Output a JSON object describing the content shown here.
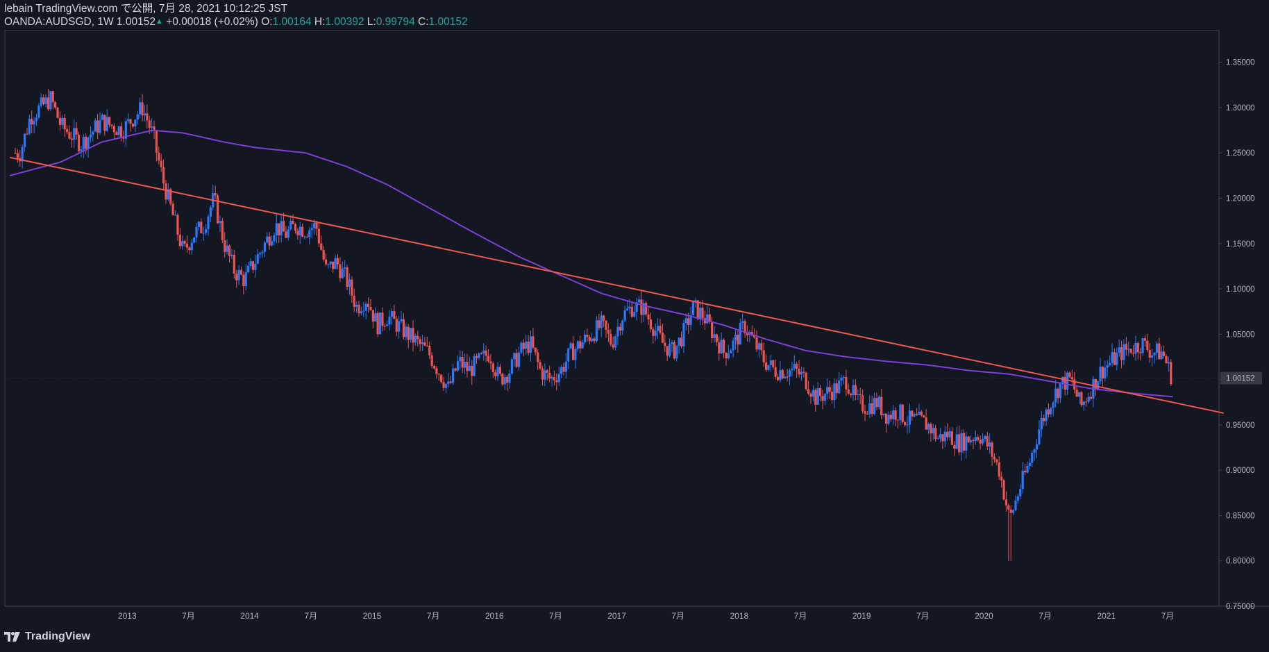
{
  "header": {
    "publisher_line": "lebain TradingView.com で公開, 7月 28, 2021 10:12:25 JST",
    "symbol": "OANDA:AUDSGD, 1W",
    "last": "1.00152",
    "change": "+0.00018 (+0.02%)",
    "o_label": "O:",
    "o_value": "1.00164",
    "h_label": "H:",
    "h_value": "1.00392",
    "l_label": "L:",
    "l_value": "0.99794",
    "c_label": "C:",
    "c_value": "1.00152"
  },
  "price_tag": "1.00152",
  "footer": {
    "brand": "TradingView"
  },
  "colors": {
    "background": "#131722",
    "up": "#2979ff",
    "down": "#ef5350",
    "ma": "#7e3fd6",
    "trendline": "#f0574f",
    "tag_bg": "#363a45"
  },
  "chart_data": {
    "type": "candlestick",
    "interval": "1W",
    "y_ticks": [
      "1.35000",
      "1.30000",
      "1.25000",
      "1.20000",
      "1.15000",
      "1.10000",
      "1.05000",
      "1.00000",
      "0.95000",
      "0.90000",
      "0.85000",
      "0.80000",
      "0.75000"
    ],
    "x_ticks": [
      "2013",
      "7月",
      "2014",
      "7月",
      "2015",
      "7月",
      "2016",
      "7月",
      "2017",
      "7月",
      "2018",
      "7月",
      "2019",
      "7月",
      "2020",
      "7月",
      "2021",
      "7月"
    ],
    "ylim": [
      0.75,
      1.385
    ],
    "close_path": [
      [
        "2012-02",
        1.25
      ],
      [
        "2012-03",
        1.29
      ],
      [
        "2012-05",
        1.31
      ],
      [
        "2012-06",
        1.28
      ],
      [
        "2012-08",
        1.26
      ],
      [
        "2012-10",
        1.285
      ],
      [
        "2012-12",
        1.275
      ],
      [
        "2013-02",
        1.3
      ],
      [
        "2013-03",
        1.27
      ],
      [
        "2013-04",
        1.22
      ],
      [
        "2013-05",
        1.18
      ],
      [
        "2013-06",
        1.14
      ],
      [
        "2013-07",
        1.16
      ],
      [
        "2013-08",
        1.17
      ],
      [
        "2013-09",
        1.2
      ],
      [
        "2013-10",
        1.15
      ],
      [
        "2013-11",
        1.12
      ],
      [
        "2013-12",
        1.11
      ],
      [
        "2014-01",
        1.13
      ],
      [
        "2014-02",
        1.15
      ],
      [
        "2014-03",
        1.17
      ],
      [
        "2014-04",
        1.16
      ],
      [
        "2014-05",
        1.17
      ],
      [
        "2014-06",
        1.165
      ],
      [
        "2014-07",
        1.17
      ],
      [
        "2014-08",
        1.12
      ],
      [
        "2014-09",
        1.13
      ],
      [
        "2014-10",
        1.11
      ],
      [
        "2014-11",
        1.08
      ],
      [
        "2014-12",
        1.09
      ],
      [
        "2015-01",
        1.06
      ],
      [
        "2015-02",
        1.07
      ],
      [
        "2015-03",
        1.06
      ],
      [
        "2015-04",
        1.05
      ],
      [
        "2015-05",
        1.04
      ],
      [
        "2015-06",
        1.03
      ],
      [
        "2015-07",
        1.01
      ],
      [
        "2015-08",
        0.99
      ],
      [
        "2015-09",
        1.02
      ],
      [
        "2015-10",
        1.01
      ],
      [
        "2015-11",
        1.02
      ],
      [
        "2015-12",
        1.03
      ],
      [
        "2016-01",
        1.0
      ],
      [
        "2016-02",
        1.01
      ],
      [
        "2016-03",
        1.03
      ],
      [
        "2016-04",
        1.04
      ],
      [
        "2016-05",
        1.01
      ],
      [
        "2016-06",
        1.0
      ],
      [
        "2016-07",
        1.01
      ],
      [
        "2016-08",
        1.03
      ],
      [
        "2016-09",
        1.04
      ],
      [
        "2016-10",
        1.05
      ],
      [
        "2016-11",
        1.06
      ],
      [
        "2016-12",
        1.04
      ],
      [
        "2017-01",
        1.07
      ],
      [
        "2017-02",
        1.08
      ],
      [
        "2017-03",
        1.08
      ],
      [
        "2017-04",
        1.06
      ],
      [
        "2017-05",
        1.04
      ],
      [
        "2017-06",
        1.03
      ],
      [
        "2017-07",
        1.05
      ],
      [
        "2017-08",
        1.08
      ],
      [
        "2017-09",
        1.07
      ],
      [
        "2017-10",
        1.05
      ],
      [
        "2017-11",
        1.03
      ],
      [
        "2017-12",
        1.04
      ],
      [
        "2018-01",
        1.06
      ],
      [
        "2018-02",
        1.04
      ],
      [
        "2018-03",
        1.02
      ],
      [
        "2018-04",
        1.01
      ],
      [
        "2018-05",
        1.01
      ],
      [
        "2018-06",
        1.01
      ],
      [
        "2018-07",
        1.0
      ],
      [
        "2018-08",
        0.98
      ],
      [
        "2018-09",
        0.985
      ],
      [
        "2018-10",
        0.99
      ],
      [
        "2018-11",
        1.0
      ],
      [
        "2018-12",
        0.975
      ],
      [
        "2019-01",
        0.97
      ],
      [
        "2019-02",
        0.975
      ],
      [
        "2019-03",
        0.96
      ],
      [
        "2019-04",
        0.965
      ],
      [
        "2019-05",
        0.955
      ],
      [
        "2019-06",
        0.955
      ],
      [
        "2019-07",
        0.95
      ],
      [
        "2019-08",
        0.935
      ],
      [
        "2019-09",
        0.94
      ],
      [
        "2019-10",
        0.93
      ],
      [
        "2019-11",
        0.935
      ],
      [
        "2019-12",
        0.94
      ],
      [
        "2020-01",
        0.925
      ],
      [
        "2020-02",
        0.9
      ],
      [
        "2020-03",
        0.845
      ],
      [
        "2020-04",
        0.88
      ],
      [
        "2020-05",
        0.91
      ],
      [
        "2020-06",
        0.95
      ],
      [
        "2020-07",
        0.975
      ],
      [
        "2020-08",
        0.995
      ],
      [
        "2020-09",
        1.0
      ],
      [
        "2020-10",
        0.97
      ],
      [
        "2020-11",
        0.99
      ],
      [
        "2020-12",
        1.01
      ],
      [
        "2021-01",
        1.02
      ],
      [
        "2021-02",
        1.03
      ],
      [
        "2021-03",
        1.035
      ],
      [
        "2021-04",
        1.04
      ],
      [
        "2021-05",
        1.03
      ],
      [
        "2021-06",
        1.03
      ],
      [
        "2021-07",
        1.0
      ]
    ],
    "moving_average": [
      [
        "2012-01",
        1.225
      ],
      [
        "2012-06",
        1.24
      ],
      [
        "2012-10",
        1.262
      ],
      [
        "2013-03",
        1.275
      ],
      [
        "2013-06",
        1.272
      ],
      [
        "2013-10",
        1.262
      ],
      [
        "2014-01",
        1.256
      ],
      [
        "2014-06",
        1.25
      ],
      [
        "2014-10",
        1.235
      ],
      [
        "2015-02",
        1.215
      ],
      [
        "2015-06",
        1.19
      ],
      [
        "2015-10",
        1.165
      ],
      [
        "2016-03",
        1.135
      ],
      [
        "2016-07",
        1.115
      ],
      [
        "2016-11",
        1.095
      ],
      [
        "2017-03",
        1.082
      ],
      [
        "2017-07",
        1.072
      ],
      [
        "2017-11",
        1.06
      ],
      [
        "2018-03",
        1.045
      ],
      [
        "2018-07",
        1.032
      ],
      [
        "2018-11",
        1.025
      ],
      [
        "2019-03",
        1.02
      ],
      [
        "2019-07",
        1.016
      ],
      [
        "2019-11",
        1.01
      ],
      [
        "2020-03",
        1.006
      ],
      [
        "2020-07",
        0.998
      ],
      [
        "2020-11",
        0.99
      ],
      [
        "2021-03",
        0.985
      ],
      [
        "2021-07",
        0.981
      ]
    ],
    "trendline": {
      "start": [
        "2012-01",
        1.245
      ],
      "end": [
        "2021-12",
        0.963
      ]
    },
    "wick_extremes": {
      "high_2012": 1.316,
      "low_2020": 0.8
    }
  }
}
